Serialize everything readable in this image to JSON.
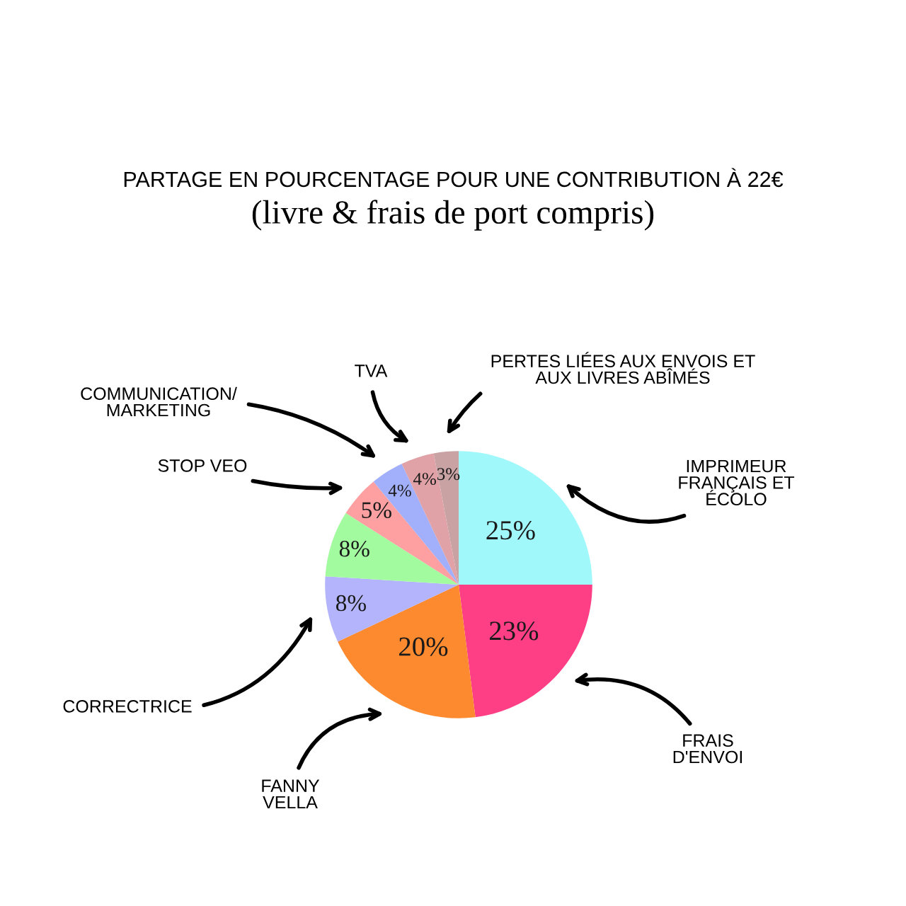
{
  "chart_data": {
    "type": "pie",
    "title": "PARTAGE EN POURCENTAGE POUR UNE CONTRIBUTION À 22€",
    "subtitle": "(livre & frais de port compris)",
    "categories": [
      "IMPRIMEUR\nFRANÇAIS ET\nÉCOLO",
      "FRAIS\nD'ENVOI",
      "FANNY\nVELLA",
      "CORRECTRICE",
      null,
      "STOP VEO",
      "COMMUNICATION/\nMARKETING",
      "TVA",
      "PERTES LIÉES AUX ENVOIS ET\nAUX LIVRES ABÎMÉS"
    ],
    "values": [
      25,
      23,
      20,
      8,
      8,
      5,
      4,
      4,
      3
    ],
    "colors": [
      "#a0f8fb",
      "#fe3f86",
      "#fe8a30",
      "#b3b4fc",
      "#a3fb9f",
      "#fea0a1",
      "#a2b0fb",
      "#e0a2a6",
      "#c9a2a4"
    ],
    "value_labels": [
      "25%",
      "23%",
      "20%",
      "8%",
      "8%",
      "5%",
      "4%",
      "4%",
      "3%"
    ]
  }
}
